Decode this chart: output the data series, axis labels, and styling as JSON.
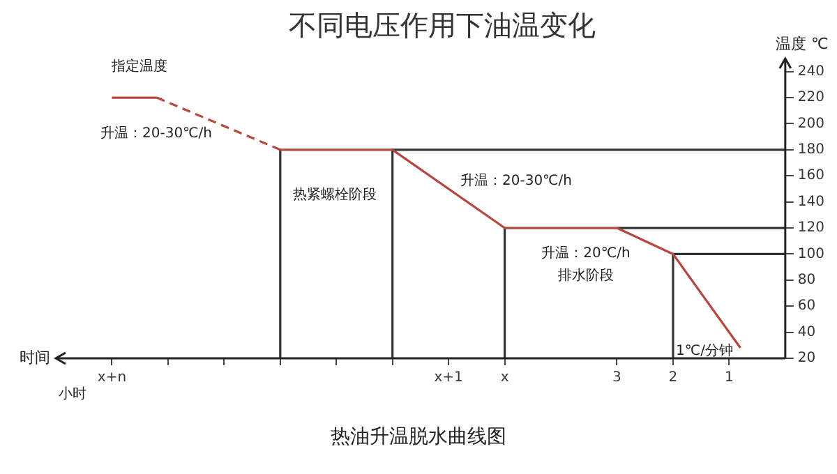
{
  "chart_data": {
    "type": "line",
    "title": "不同电压作用下油温变化",
    "xlabel": "时间",
    "ylabel": "温度 ℃",
    "xlim": [
      13,
      0
    ],
    "xticks": [
      {
        "value": 1,
        "label": "1"
      },
      {
        "value": 2,
        "label": "2"
      },
      {
        "value": 3,
        "label": "3"
      },
      {
        "value": 5,
        "label": "x"
      },
      {
        "value": 6,
        "label": "x+1"
      },
      {
        "value": 7,
        "label": null
      },
      {
        "value": 8,
        "label": null
      },
      {
        "value": 9,
        "label": null
      },
      {
        "value": 10,
        "label": null
      },
      {
        "value": 11,
        "label": null
      },
      {
        "value": 12,
        "label": "x+n"
      }
    ],
    "ylim": [
      20,
      250
    ],
    "yticks": [
      20,
      40,
      60,
      80,
      100,
      120,
      140,
      160,
      180,
      200,
      220,
      240
    ],
    "grid": false,
    "legend": false,
    "marker": "none",
    "series": [
      {
        "color": "#b5473f",
        "x": [
          12,
          11.2
        ],
        "values": [
          220,
          220
        ],
        "line_style": "solid"
      },
      {
        "color": "#b5473f",
        "x": [
          11.2,
          9
        ],
        "values": [
          220,
          180
        ],
        "line_style": "dashed"
      },
      {
        "color": "#b5473f",
        "x": [
          9,
          7,
          5,
          3,
          2,
          0.8
        ],
        "values": [
          180,
          180,
          120,
          120,
          100,
          28
        ],
        "line_style": "solid"
      },
      {
        "color": "#333333",
        "x": [
          7,
          0
        ],
        "values": [
          180,
          180
        ],
        "line_style": "solid"
      },
      {
        "color": "#333333",
        "x": [
          3,
          0
        ],
        "values": [
          120,
          120
        ],
        "line_style": "solid"
      },
      {
        "color": "#333333",
        "x": [
          2,
          0
        ],
        "values": [
          100,
          100
        ],
        "line_style": "solid"
      },
      {
        "color": "#333333",
        "x": [
          9,
          9
        ],
        "values": [
          180,
          20
        ],
        "line_style": "solid"
      },
      {
        "color": "#333333",
        "x": [
          7,
          7
        ],
        "values": [
          180,
          20
        ],
        "line_style": "solid"
      },
      {
        "color": "#333333",
        "x": [
          5,
          5
        ],
        "values": [
          120,
          20
        ],
        "line_style": "solid"
      },
      {
        "color": "#333333",
        "x": [
          2,
          2
        ],
        "values": [
          100,
          20
        ],
        "line_style": "solid"
      }
    ],
    "annotations": [
      "指定温度",
      "升温：20-30℃/h",
      "热紧螺栓阶段",
      "升温：20-30℃/h",
      "升温：20℃/h",
      "排水阶段",
      "1℃/分钟",
      "小时",
      "热油升温脱水曲线图"
    ]
  }
}
